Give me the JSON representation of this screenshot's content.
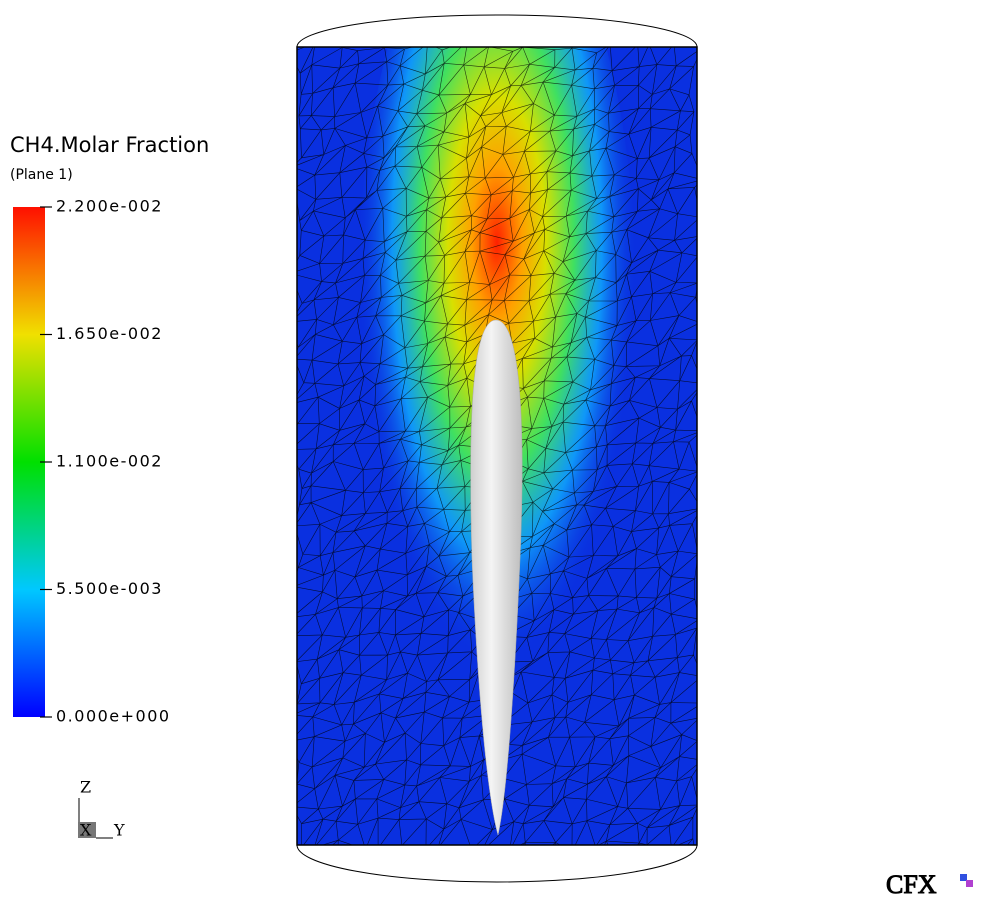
{
  "legend": {
    "title": "CH4.Molar Fraction",
    "subtitle": "(Plane 1)",
    "range": [
      0,
      0.022
    ],
    "ticks": [
      {
        "value": 0.022,
        "label": "2.200e-002"
      },
      {
        "value": 0.0165,
        "label": "1.650e-002"
      },
      {
        "value": 0.011,
        "label": "1.100e-002"
      },
      {
        "value": 0.0055,
        "label": "5.500e-003"
      },
      {
        "value": 0,
        "label": "0.000e+000"
      }
    ]
  },
  "axes": {
    "z": "Z",
    "x": "X",
    "y": "Y"
  },
  "logo": "CFX"
}
